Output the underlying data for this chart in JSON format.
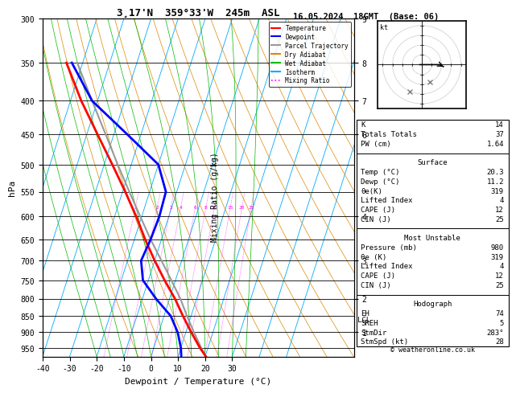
{
  "title_left": "3¸17'N  359°33'W  245m  ASL",
  "title_right": "16.05.2024  18GMT  (Base: 06)",
  "xlabel": "Dewpoint / Temperature (°C)",
  "ylabel_left": "hPa",
  "isotherm_color": "#00aaff",
  "dry_adiabat_color": "#dd8800",
  "wet_adiabat_color": "#00bb00",
  "mixing_ratio_color": "#ff00ff",
  "temp_line_color": "#ff0000",
  "dewpoint_line_color": "#0000ff",
  "parcel_color": "#999999",
  "legend_labels": [
    "Temperature",
    "Dewpoint",
    "Parcel Trajectory",
    "Dry Adiabat",
    "Wet Adiabat",
    "Isotherm",
    "Mixing Ratio"
  ],
  "legend_colors": [
    "#ff0000",
    "#0000ff",
    "#999999",
    "#dd8800",
    "#00bb00",
    "#00aaff",
    "#ff00ff"
  ],
  "legend_styles": [
    "-",
    "-",
    "-",
    "-",
    "-",
    "-",
    ":"
  ],
  "mixing_ratio_values": [
    1,
    2,
    3,
    4,
    6,
    8,
    10,
    15,
    20,
    25
  ],
  "temp_profile_T": [
    20.3,
    17.0,
    12.0,
    7.0,
    2.0,
    -4.0,
    -10.0,
    -16.0,
    -22.0,
    -29.0,
    -37.0,
    -46.0,
    -56.0,
    -66.0
  ],
  "temp_profile_P": [
    980,
    950,
    900,
    850,
    800,
    750,
    700,
    650,
    600,
    550,
    500,
    450,
    400,
    350
  ],
  "dewpoint_profile_T": [
    11.2,
    10.0,
    7.0,
    2.5,
    -5.0,
    -12.0,
    -15.0,
    -14.0,
    -13.5,
    -14.0,
    -20.0,
    -35.0,
    -52.0,
    -64.0
  ],
  "dewpoint_profile_P": [
    980,
    950,
    900,
    850,
    800,
    750,
    700,
    650,
    600,
    550,
    500,
    450,
    400,
    350
  ],
  "parcel_profile_T": [
    20.3,
    17.5,
    13.0,
    8.5,
    4.0,
    -1.5,
    -7.5,
    -14.0,
    -20.5,
    -27.5,
    -35.0,
    -43.0,
    -52.0,
    -62.0
  ],
  "parcel_profile_P": [
    980,
    950,
    900,
    850,
    800,
    750,
    700,
    650,
    600,
    550,
    500,
    450,
    400,
    350
  ],
  "copyright": "© weatheronline.co.uk",
  "stats_rows": [
    [
      "K",
      "14"
    ],
    [
      "Totals Totals",
      "37"
    ],
    [
      "PW (cm)",
      "1.64"
    ],
    [
      "__div__",
      ""
    ],
    [
      "__center__Surface",
      ""
    ],
    [
      "Temp (°C)",
      "20.3"
    ],
    [
      "Dewp (°C)",
      "11.2"
    ],
    [
      "θe(K)",
      "319"
    ],
    [
      "Lifted Index",
      "4"
    ],
    [
      "CAPE (J)",
      "12"
    ],
    [
      "CIN (J)",
      "25"
    ],
    [
      "__div__",
      ""
    ],
    [
      "__center__Most Unstable",
      ""
    ],
    [
      "Pressure (mb)",
      "980"
    ],
    [
      "θe (K)",
      "319"
    ],
    [
      "Lifted Index",
      "4"
    ],
    [
      "CAPE (J)",
      "12"
    ],
    [
      "CIN (J)",
      "25"
    ],
    [
      "__div__",
      ""
    ],
    [
      "__center__Hodograph",
      ""
    ],
    [
      "EH",
      "74"
    ],
    [
      "SREH",
      "5"
    ],
    [
      "StmDir",
      "283°"
    ],
    [
      "StmSpd (kt)",
      "28"
    ]
  ]
}
